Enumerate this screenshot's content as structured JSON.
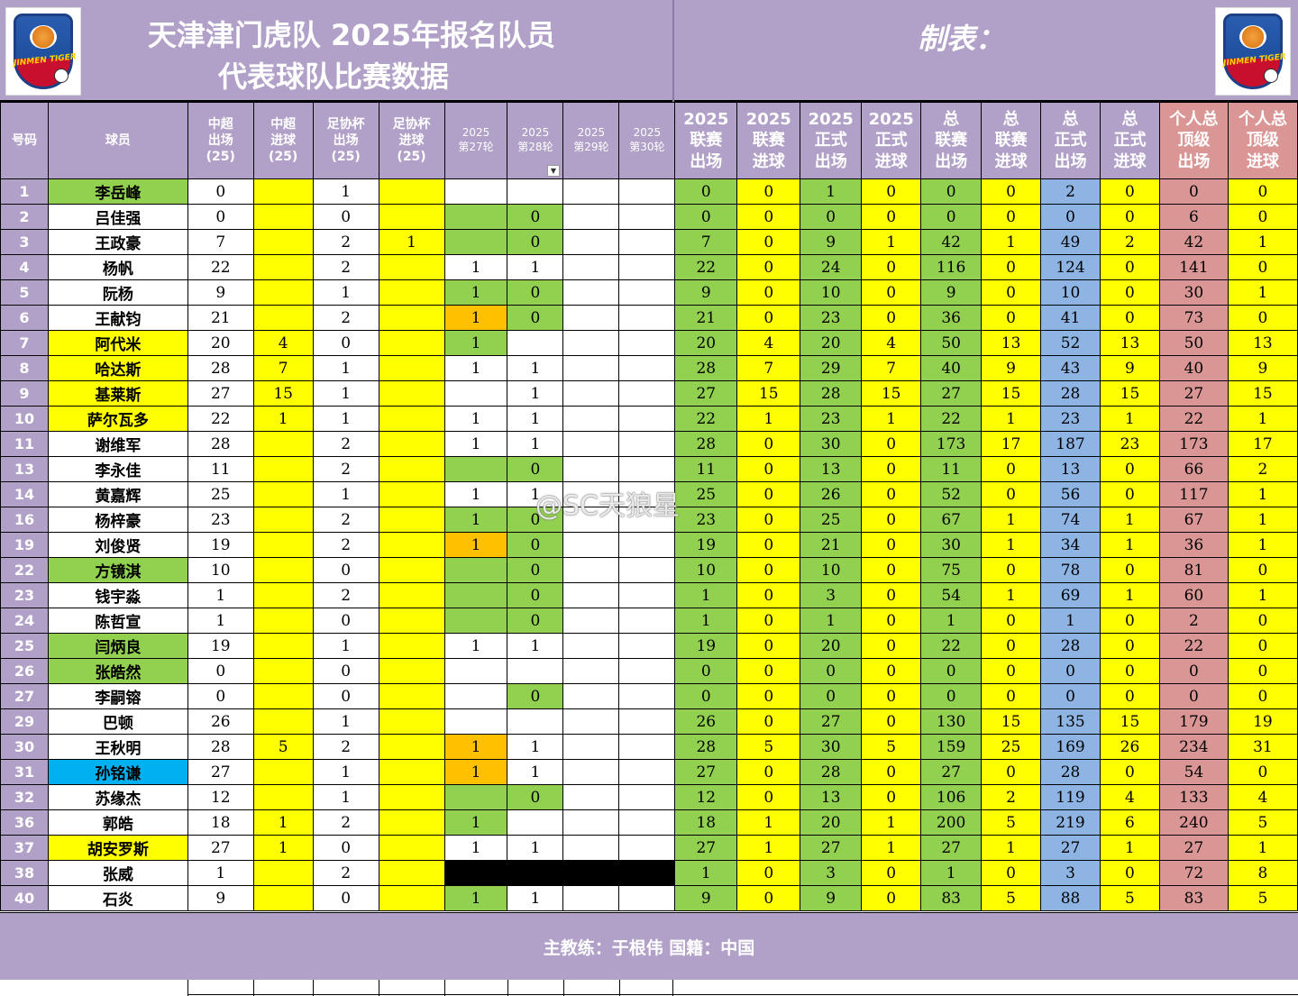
{
  "header": {
    "title_line1": "天津津门虎队 2025年报名队员",
    "title_line2": "代表球队比赛数据",
    "maker_label": "制表：",
    "logo_text": "JINMEN TIGER"
  },
  "columns": [
    "号码",
    "球员",
    "中超出场(25)",
    "中超进球(25)",
    "足协杯出场(25)",
    "足协杯进球(25)",
    "2025第27轮",
    "2025第28轮",
    "2025第29轮",
    "2025第30轮",
    "2025联赛出场",
    "2025联赛进球",
    "2025正式出场",
    "2025正式进球",
    "总联赛出场",
    "总联赛进球",
    "总正式出场",
    "总正式进球",
    "个人总顶级出场",
    "个人总顶级进球"
  ],
  "header_labels": {
    "num": "号码",
    "name": "球员",
    "csl_apps": [
      "中超",
      "出场",
      "(25)"
    ],
    "csl_goals": [
      "中超",
      "进球",
      "(25)"
    ],
    "fa_apps": [
      "足协杯",
      "出场",
      "(25)"
    ],
    "fa_goals": [
      "足协杯",
      "进球",
      "(25)"
    ],
    "r27": [
      "2025",
      "第27轮"
    ],
    "r28": [
      "2025",
      "第28轮"
    ],
    "r29": [
      "2025",
      "第29轮"
    ],
    "r30": [
      "2025",
      "第30轮"
    ],
    "lg_apps": [
      "2025",
      "联赛",
      "出场"
    ],
    "lg_goals": [
      "2025",
      "联赛",
      "进球"
    ],
    "of_apps": [
      "2025",
      "正式",
      "出场"
    ],
    "of_goals": [
      "2025",
      "正式",
      "进球"
    ],
    "tot_lg_apps": [
      "总",
      "联赛",
      "出场"
    ],
    "tot_lg_goals": [
      "总",
      "联赛",
      "进球"
    ],
    "tot_of_apps": [
      "总",
      "正式",
      "出场"
    ],
    "tot_of_goals": [
      "总",
      "正式",
      "进球"
    ],
    "top_apps": [
      "个人总",
      "顶级",
      "出场"
    ],
    "top_goals": [
      "个人总",
      "顶级",
      "进球"
    ]
  },
  "rows": [
    {
      "num": "1",
      "name": "李岳峰",
      "name_color": "g",
      "c": [
        "0",
        "",
        "1",
        ""
      ],
      "r": [
        [
          "",
          "w"
        ],
        [
          "",
          "w"
        ],
        [
          "",
          "w"
        ],
        [
          "",
          "w"
        ]
      ],
      "s": [
        "0",
        "0",
        "1",
        "0",
        "0",
        "0",
        "2",
        "0",
        "0",
        "0"
      ]
    },
    {
      "num": "2",
      "name": "吕佳强",
      "name_color": "w",
      "c": [
        "0",
        "",
        "0",
        ""
      ],
      "r": [
        [
          "",
          "g"
        ],
        [
          "0",
          "g"
        ],
        [
          "",
          "w"
        ],
        [
          "",
          "w"
        ]
      ],
      "s": [
        "0",
        "0",
        "0",
        "0",
        "0",
        "0",
        "0",
        "0",
        "6",
        "0"
      ]
    },
    {
      "num": "3",
      "name": "王政豪",
      "name_color": "w",
      "c": [
        "7",
        "",
        "2",
        "1"
      ],
      "r": [
        [
          "",
          "g"
        ],
        [
          "0",
          "g"
        ],
        [
          "",
          "w"
        ],
        [
          "",
          "w"
        ]
      ],
      "s": [
        "7",
        "0",
        "9",
        "1",
        "42",
        "1",
        "49",
        "2",
        "42",
        "1"
      ]
    },
    {
      "num": "4",
      "name": "杨帆",
      "name_color": "w",
      "c": [
        "22",
        "",
        "2",
        ""
      ],
      "r": [
        [
          "1",
          "w"
        ],
        [
          "1",
          "w"
        ],
        [
          "",
          "w"
        ],
        [
          "",
          "w"
        ]
      ],
      "s": [
        "22",
        "0",
        "24",
        "0",
        "116",
        "0",
        "124",
        "0",
        "141",
        "0"
      ]
    },
    {
      "num": "5",
      "name": "阮杨",
      "name_color": "w",
      "c": [
        "9",
        "",
        "1",
        ""
      ],
      "r": [
        [
          "1",
          "g"
        ],
        [
          "0",
          "g"
        ],
        [
          "",
          "w"
        ],
        [
          "",
          "w"
        ]
      ],
      "s": [
        "9",
        "0",
        "10",
        "0",
        "9",
        "0",
        "10",
        "0",
        "30",
        "1"
      ]
    },
    {
      "num": "6",
      "name": "王献钧",
      "name_color": "w",
      "c": [
        "21",
        "",
        "2",
        ""
      ],
      "r": [
        [
          "1",
          "o"
        ],
        [
          "0",
          "g"
        ],
        [
          "",
          "w"
        ],
        [
          "",
          "w"
        ]
      ],
      "s": [
        "21",
        "0",
        "23",
        "0",
        "36",
        "0",
        "41",
        "0",
        "73",
        "0"
      ]
    },
    {
      "num": "7",
      "name": "阿代米",
      "name_color": "y",
      "c": [
        "20",
        "4",
        "0",
        ""
      ],
      "r": [
        [
          "1",
          "g"
        ],
        [
          "",
          "w"
        ],
        [
          "",
          "w"
        ],
        [
          "",
          "w"
        ]
      ],
      "s": [
        "20",
        "4",
        "20",
        "4",
        "50",
        "13",
        "52",
        "13",
        "50",
        "13"
      ]
    },
    {
      "num": "8",
      "name": "哈达斯",
      "name_color": "y",
      "c": [
        "28",
        "7",
        "1",
        ""
      ],
      "r": [
        [
          "1",
          "w"
        ],
        [
          "1",
          "w"
        ],
        [
          "",
          "w"
        ],
        [
          "",
          "w"
        ]
      ],
      "s": [
        "28",
        "7",
        "29",
        "7",
        "40",
        "9",
        "43",
        "9",
        "40",
        "9"
      ]
    },
    {
      "num": "9",
      "name": "基莱斯",
      "name_color": "y",
      "c": [
        "27",
        "15",
        "1",
        ""
      ],
      "r": [
        [
          "",
          "w"
        ],
        [
          "1",
          "w"
        ],
        [
          "",
          "w"
        ],
        [
          "",
          "w"
        ]
      ],
      "s": [
        "27",
        "15",
        "28",
        "15",
        "27",
        "15",
        "28",
        "15",
        "27",
        "15"
      ]
    },
    {
      "num": "10",
      "name": "萨尔瓦多",
      "name_color": "y",
      "c": [
        "22",
        "1",
        "1",
        ""
      ],
      "r": [
        [
          "1",
          "w"
        ],
        [
          "1",
          "w"
        ],
        [
          "",
          "w"
        ],
        [
          "",
          "w"
        ]
      ],
      "s": [
        "22",
        "1",
        "23",
        "1",
        "22",
        "1",
        "23",
        "1",
        "22",
        "1"
      ]
    },
    {
      "num": "11",
      "name": "谢维军",
      "name_color": "w",
      "c": [
        "28",
        "",
        "2",
        ""
      ],
      "r": [
        [
          "1",
          "w"
        ],
        [
          "1",
          "w"
        ],
        [
          "",
          "w"
        ],
        [
          "",
          "w"
        ]
      ],
      "s": [
        "28",
        "0",
        "30",
        "0",
        "173",
        "17",
        "187",
        "23",
        "173",
        "17"
      ]
    },
    {
      "num": "13",
      "name": "李永佳",
      "name_color": "w",
      "c": [
        "11",
        "",
        "2",
        ""
      ],
      "r": [
        [
          "",
          "g"
        ],
        [
          "0",
          "g"
        ],
        [
          "",
          "w"
        ],
        [
          "",
          "w"
        ]
      ],
      "s": [
        "11",
        "0",
        "13",
        "0",
        "11",
        "0",
        "13",
        "0",
        "66",
        "2"
      ]
    },
    {
      "num": "14",
      "name": "黄嘉辉",
      "name_color": "w",
      "c": [
        "25",
        "",
        "1",
        ""
      ],
      "r": [
        [
          "1",
          "w"
        ],
        [
          "1",
          "w"
        ],
        [
          "",
          "w"
        ],
        [
          "",
          "w"
        ]
      ],
      "s": [
        "25",
        "0",
        "26",
        "0",
        "52",
        "0",
        "56",
        "0",
        "117",
        "1"
      ]
    },
    {
      "num": "16",
      "name": "杨梓豪",
      "name_color": "w",
      "c": [
        "23",
        "",
        "2",
        ""
      ],
      "r": [
        [
          "1",
          "g"
        ],
        [
          "0",
          "g"
        ],
        [
          "",
          "w"
        ],
        [
          "",
          "w"
        ]
      ],
      "s": [
        "23",
        "0",
        "25",
        "0",
        "67",
        "1",
        "74",
        "1",
        "67",
        "1"
      ]
    },
    {
      "num": "19",
      "name": "刘俊贤",
      "name_color": "w",
      "c": [
        "19",
        "",
        "2",
        ""
      ],
      "r": [
        [
          "1",
          "o"
        ],
        [
          "0",
          "g"
        ],
        [
          "",
          "w"
        ],
        [
          "",
          "w"
        ]
      ],
      "s": [
        "19",
        "0",
        "21",
        "0",
        "30",
        "1",
        "34",
        "1",
        "36",
        "1"
      ]
    },
    {
      "num": "22",
      "name": "方镜淇",
      "name_color": "g",
      "c": [
        "10",
        "",
        "0",
        ""
      ],
      "r": [
        [
          "",
          "g"
        ],
        [
          "0",
          "g"
        ],
        [
          "",
          "w"
        ],
        [
          "",
          "w"
        ]
      ],
      "s": [
        "10",
        "0",
        "10",
        "0",
        "75",
        "0",
        "78",
        "0",
        "81",
        "0"
      ]
    },
    {
      "num": "23",
      "name": "钱宇淼",
      "name_color": "w",
      "c": [
        "1",
        "",
        "2",
        ""
      ],
      "r": [
        [
          "",
          "g"
        ],
        [
          "0",
          "g"
        ],
        [
          "",
          "w"
        ],
        [
          "",
          "w"
        ]
      ],
      "s": [
        "1",
        "0",
        "3",
        "0",
        "54",
        "1",
        "69",
        "1",
        "60",
        "1"
      ]
    },
    {
      "num": "24",
      "name": "陈哲宣",
      "name_color": "w",
      "c": [
        "1",
        "",
        "0",
        ""
      ],
      "r": [
        [
          "",
          "g"
        ],
        [
          "0",
          "g"
        ],
        [
          "",
          "w"
        ],
        [
          "",
          "w"
        ]
      ],
      "s": [
        "1",
        "0",
        "1",
        "0",
        "1",
        "0",
        "1",
        "0",
        "2",
        "0"
      ]
    },
    {
      "num": "25",
      "name": "闫炳良",
      "name_color": "g",
      "c": [
        "19",
        "",
        "1",
        ""
      ],
      "r": [
        [
          "1",
          "w"
        ],
        [
          "1",
          "w"
        ],
        [
          "",
          "w"
        ],
        [
          "",
          "w"
        ]
      ],
      "s": [
        "19",
        "0",
        "20",
        "0",
        "22",
        "0",
        "28",
        "0",
        "22",
        "0"
      ]
    },
    {
      "num": "26",
      "name": "张皓然",
      "name_color": "g",
      "c": [
        "0",
        "",
        "0",
        ""
      ],
      "r": [
        [
          "",
          "w"
        ],
        [
          "",
          "w"
        ],
        [
          "",
          "w"
        ],
        [
          "",
          "w"
        ]
      ],
      "s": [
        "0",
        "0",
        "0",
        "0",
        "0",
        "0",
        "0",
        "0",
        "0",
        "0"
      ]
    },
    {
      "num": "27",
      "name": "李嗣镕",
      "name_color": "w",
      "c": [
        "0",
        "",
        "0",
        ""
      ],
      "r": [
        [
          "",
          "w"
        ],
        [
          "0",
          "g"
        ],
        [
          "",
          "w"
        ],
        [
          "",
          "w"
        ]
      ],
      "s": [
        "0",
        "0",
        "0",
        "0",
        "0",
        "0",
        "0",
        "0",
        "0",
        "0"
      ]
    },
    {
      "num": "29",
      "name": "巴顿",
      "name_color": "w",
      "c": [
        "26",
        "",
        "1",
        ""
      ],
      "r": [
        [
          "",
          "w"
        ],
        [
          "",
          "w"
        ],
        [
          "",
          "w"
        ],
        [
          "",
          "w"
        ]
      ],
      "s": [
        "26",
        "0",
        "27",
        "0",
        "130",
        "15",
        "135",
        "15",
        "179",
        "19"
      ]
    },
    {
      "num": "30",
      "name": "王秋明",
      "name_color": "w",
      "c": [
        "28",
        "5",
        "2",
        ""
      ],
      "r": [
        [
          "1",
          "o"
        ],
        [
          "1",
          "w"
        ],
        [
          "",
          "w"
        ],
        [
          "",
          "w"
        ]
      ],
      "s": [
        "28",
        "5",
        "30",
        "5",
        "159",
        "25",
        "169",
        "26",
        "234",
        "31"
      ]
    },
    {
      "num": "31",
      "name": "孙铭谦",
      "name_color": "c",
      "c": [
        "27",
        "",
        "1",
        ""
      ],
      "r": [
        [
          "1",
          "o"
        ],
        [
          "1",
          "w"
        ],
        [
          "",
          "w"
        ],
        [
          "",
          "w"
        ]
      ],
      "s": [
        "27",
        "0",
        "28",
        "0",
        "27",
        "0",
        "28",
        "0",
        "54",
        "0"
      ]
    },
    {
      "num": "32",
      "name": "苏缘杰",
      "name_color": "w",
      "c": [
        "12",
        "",
        "1",
        ""
      ],
      "r": [
        [
          "",
          "g"
        ],
        [
          "0",
          "g"
        ],
        [
          "",
          "w"
        ],
        [
          "",
          "w"
        ]
      ],
      "s": [
        "12",
        "0",
        "13",
        "0",
        "106",
        "2",
        "119",
        "4",
        "133",
        "4"
      ]
    },
    {
      "num": "36",
      "name": "郭皓",
      "name_color": "w",
      "c": [
        "18",
        "1",
        "2",
        ""
      ],
      "r": [
        [
          "1",
          "g"
        ],
        [
          "",
          "w"
        ],
        [
          "",
          "w"
        ],
        [
          "",
          "w"
        ]
      ],
      "s": [
        "18",
        "1",
        "20",
        "1",
        "200",
        "5",
        "219",
        "6",
        "240",
        "5"
      ]
    },
    {
      "num": "37",
      "name": "胡安罗斯",
      "name_color": "y",
      "c": [
        "27",
        "1",
        "0",
        ""
      ],
      "r": [
        [
          "1",
          "w"
        ],
        [
          "1",
          "w"
        ],
        [
          "",
          "w"
        ],
        [
          "",
          "w"
        ]
      ],
      "s": [
        "27",
        "1",
        "27",
        "1",
        "27",
        "1",
        "27",
        "1",
        "27",
        "1"
      ]
    },
    {
      "num": "38",
      "name": "张威",
      "name_color": "w",
      "c": [
        "1",
        "",
        "2",
        ""
      ],
      "r": [
        [
          "",
          "k"
        ],
        [
          "",
          "k"
        ],
        [
          "",
          "k"
        ],
        [
          "",
          "k"
        ]
      ],
      "s": [
        "1",
        "0",
        "3",
        "0",
        "1",
        "0",
        "3",
        "0",
        "72",
        "8"
      ]
    },
    {
      "num": "40",
      "name": "石炎",
      "name_color": "w",
      "c": [
        "9",
        "",
        "0",
        ""
      ],
      "r": [
        [
          "1",
          "g"
        ],
        [
          "1",
          "w"
        ],
        [
          "",
          "w"
        ],
        [
          "",
          "w"
        ]
      ],
      "s": [
        "9",
        "0",
        "9",
        "0",
        "83",
        "5",
        "88",
        "5",
        "83",
        "5"
      ]
    }
  ],
  "footer": {
    "coach_text": "主教练：于根伟  国籍：中国"
  },
  "watermark": "@SC天狼星",
  "colors": {
    "header_purple": "#b1a0c7",
    "yellow": "#ffff00",
    "green": "#92d050",
    "orange": "#ffc000",
    "blue": "#8db4e2",
    "pink": "#da9694",
    "cyan": "#00b0f0"
  },
  "icons": {
    "logo": "jinmen-tiger-logo",
    "dropdown": "dropdown-arrow-icon"
  }
}
